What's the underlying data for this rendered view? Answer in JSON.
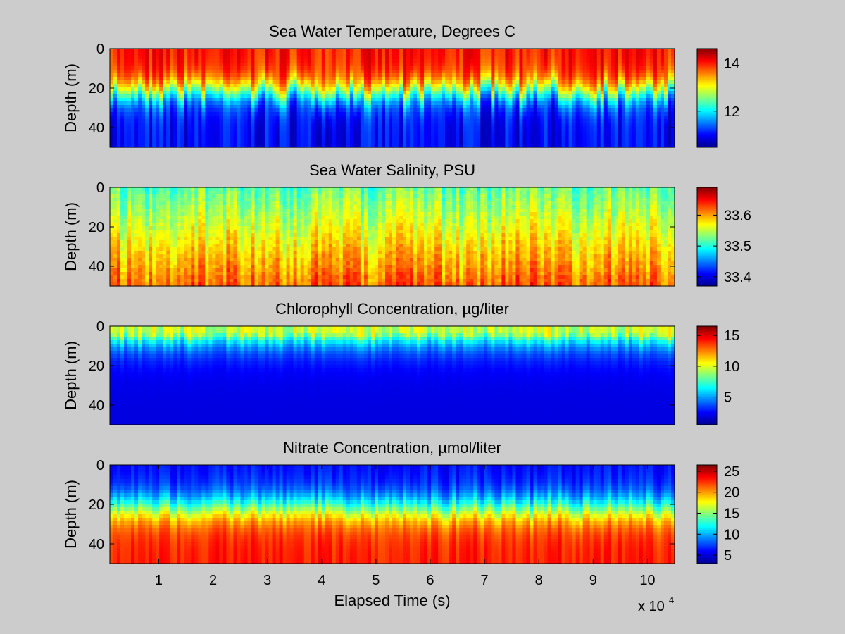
{
  "figure": {
    "background": "#cccccc"
  },
  "chart_data": [
    {
      "type": "heatmap",
      "title": "Sea Water Temperature, Degrees C",
      "ylabel": "Depth (m)",
      "y_ticks": [
        "0",
        "20",
        "40"
      ],
      "y_range": [
        0,
        50
      ],
      "x_range": [
        1000,
        105000
      ],
      "colorbar": {
        "ticks": [
          12,
          14
        ],
        "tick_labels": [
          "12",
          "14"
        ],
        "range": [
          10.5,
          14.6
        ]
      },
      "field": {
        "surface": 14.0,
        "bottom": 11.0,
        "thermocline_depth": 22,
        "variability": "vertical cast streaks"
      }
    },
    {
      "type": "heatmap",
      "title": "Sea Water Salinity, PSU",
      "ylabel": "Depth (m)",
      "y_ticks": [
        "0",
        "20",
        "40"
      ],
      "y_range": [
        0,
        50
      ],
      "x_range": [
        1000,
        105000
      ],
      "colorbar": {
        "ticks": [
          33.4,
          33.5,
          33.6
        ],
        "tick_labels": [
          "33.4",
          "33.5",
          "33.6"
        ],
        "range": [
          33.37,
          33.69
        ]
      },
      "field": {
        "surface": 33.52,
        "bottom": 33.62,
        "variability": "vertical streaks"
      }
    },
    {
      "type": "heatmap",
      "title": "Chlorophyll Concentration, µg/liter",
      "ylabel": "Depth (m)",
      "y_ticks": [
        "0",
        "20",
        "40"
      ],
      "y_range": [
        0,
        50
      ],
      "x_range": [
        1000,
        105000
      ],
      "colorbar": {
        "ticks": [
          5,
          10,
          15
        ],
        "tick_labels": [
          "5",
          "10",
          "15"
        ],
        "range": [
          0.5,
          16.5
        ]
      },
      "field": {
        "surface": 9.5,
        "bottom": 2.0,
        "max_near_surface": 16
      }
    },
    {
      "type": "heatmap",
      "title": "Nitrate Concentration, µmol/liter",
      "ylabel": "Depth (m)",
      "y_ticks": [
        "0",
        "20",
        "40"
      ],
      "y_range": [
        0,
        50
      ],
      "x_range": [
        1000,
        105000
      ],
      "xlabel": "Elapsed Time (s)",
      "x_ticks": [
        "1",
        "2",
        "3",
        "4",
        "5",
        "6",
        "7",
        "8",
        "9",
        "10"
      ],
      "x_multiplier": "x 10",
      "x_multiplier_exp": "4",
      "colorbar": {
        "ticks": [
          5,
          10,
          15,
          20,
          25
        ],
        "tick_labels": [
          "5",
          "10",
          "15",
          "20",
          "25"
        ],
        "range": [
          3,
          26.5
        ]
      },
      "field": {
        "surface": 6.0,
        "bottom": 23.0
      }
    }
  ]
}
